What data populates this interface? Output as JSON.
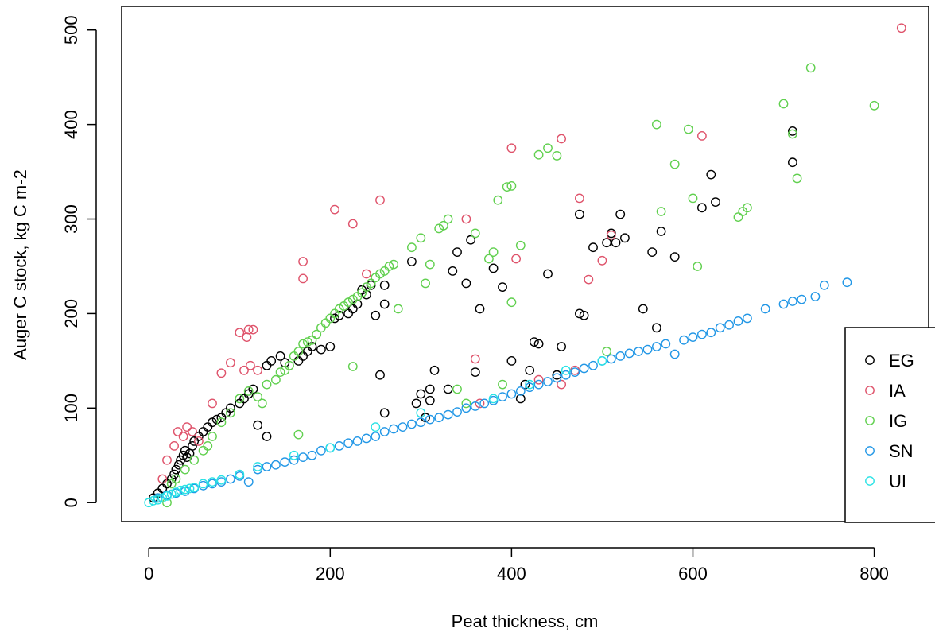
{
  "chart_data": {
    "type": "scatter",
    "title": "",
    "xlabel": "Peat thickness, cm",
    "ylabel": "Auger C stock, kg C m-2",
    "xlim": [
      -30,
      860
    ],
    "ylim": [
      -20,
      525
    ],
    "xticks": [
      0,
      200,
      400,
      600,
      800
    ],
    "yticks": [
      0,
      100,
      200,
      300,
      400,
      500
    ],
    "grid": false,
    "legend_position": "bottom-right",
    "series": [
      {
        "name": "EG",
        "color": "#000000",
        "points": [
          [
            5,
            5
          ],
          [
            10,
            10
          ],
          [
            15,
            15
          ],
          [
            20,
            20
          ],
          [
            25,
            25
          ],
          [
            28,
            30
          ],
          [
            30,
            35
          ],
          [
            33,
            40
          ],
          [
            35,
            45
          ],
          [
            38,
            50
          ],
          [
            40,
            55
          ],
          [
            42,
            48
          ],
          [
            45,
            52
          ],
          [
            48,
            60
          ],
          [
            50,
            65
          ],
          [
            55,
            70
          ],
          [
            60,
            75
          ],
          [
            65,
            80
          ],
          [
            70,
            85
          ],
          [
            75,
            88
          ],
          [
            80,
            90
          ],
          [
            85,
            95
          ],
          [
            90,
            100
          ],
          [
            100,
            105
          ],
          [
            105,
            110
          ],
          [
            110,
            115
          ],
          [
            115,
            120
          ],
          [
            120,
            82
          ],
          [
            130,
            70
          ],
          [
            130,
            145
          ],
          [
            135,
            150
          ],
          [
            145,
            155
          ],
          [
            150,
            148
          ],
          [
            165,
            150
          ],
          [
            170,
            155
          ],
          [
            175,
            160
          ],
          [
            180,
            165
          ],
          [
            190,
            162
          ],
          [
            200,
            165
          ],
          [
            205,
            195
          ],
          [
            210,
            198
          ],
          [
            220,
            200
          ],
          [
            225,
            205
          ],
          [
            230,
            210
          ],
          [
            235,
            225
          ],
          [
            240,
            220
          ],
          [
            245,
            230
          ],
          [
            250,
            198
          ],
          [
            255,
            135
          ],
          [
            260,
            95
          ],
          [
            260,
            230
          ],
          [
            260,
            210
          ],
          [
            290,
            255
          ],
          [
            295,
            105
          ],
          [
            300,
            115
          ],
          [
            305,
            90
          ],
          [
            310,
            120
          ],
          [
            310,
            108
          ],
          [
            315,
            140
          ],
          [
            330,
            120
          ],
          [
            335,
            245
          ],
          [
            340,
            265
          ],
          [
            350,
            232
          ],
          [
            355,
            278
          ],
          [
            360,
            138
          ],
          [
            365,
            205
          ],
          [
            380,
            248
          ],
          [
            390,
            228
          ],
          [
            400,
            150
          ],
          [
            410,
            110
          ],
          [
            415,
            125
          ],
          [
            420,
            140
          ],
          [
            425,
            170
          ],
          [
            430,
            168
          ],
          [
            440,
            242
          ],
          [
            450,
            135
          ],
          [
            455,
            165
          ],
          [
            475,
            200
          ],
          [
            480,
            198
          ],
          [
            475,
            305
          ],
          [
            490,
            270
          ],
          [
            505,
            275
          ],
          [
            510,
            285
          ],
          [
            515,
            275
          ],
          [
            520,
            305
          ],
          [
            525,
            280
          ],
          [
            545,
            205
          ],
          [
            555,
            265
          ],
          [
            560,
            185
          ],
          [
            565,
            287
          ],
          [
            580,
            260
          ],
          [
            610,
            312
          ],
          [
            620,
            347
          ],
          [
            625,
            318
          ],
          [
            710,
            393
          ],
          [
            710,
            360
          ]
        ]
      },
      {
        "name": "IA",
        "color": "#DF536B",
        "points": [
          [
            15,
            25
          ],
          [
            20,
            45
          ],
          [
            28,
            60
          ],
          [
            32,
            75
          ],
          [
            38,
            70
          ],
          [
            42,
            80
          ],
          [
            48,
            75
          ],
          [
            55,
            65
          ],
          [
            70,
            105
          ],
          [
            80,
            137
          ],
          [
            90,
            148
          ],
          [
            100,
            180
          ],
          [
            105,
            140
          ],
          [
            108,
            175
          ],
          [
            110,
            183
          ],
          [
            112,
            145
          ],
          [
            115,
            183
          ],
          [
            120,
            140
          ],
          [
            170,
            255
          ],
          [
            170,
            237
          ],
          [
            205,
            310
          ],
          [
            225,
            295
          ],
          [
            240,
            242
          ],
          [
            255,
            320
          ],
          [
            350,
            300
          ],
          [
            360,
            152
          ],
          [
            365,
            105
          ],
          [
            400,
            375
          ],
          [
            405,
            258
          ],
          [
            430,
            130
          ],
          [
            455,
            385
          ],
          [
            455,
            125
          ],
          [
            470,
            140
          ],
          [
            475,
            322
          ],
          [
            485,
            236
          ],
          [
            500,
            256
          ],
          [
            510,
            283
          ],
          [
            610,
            388
          ],
          [
            830,
            502
          ]
        ]
      },
      {
        "name": "IG",
        "color": "#61D04F",
        "points": [
          [
            10,
            5
          ],
          [
            20,
            0
          ],
          [
            25,
            20
          ],
          [
            30,
            25
          ],
          [
            40,
            35
          ],
          [
            50,
            45
          ],
          [
            60,
            55
          ],
          [
            65,
            60
          ],
          [
            70,
            70
          ],
          [
            80,
            85
          ],
          [
            90,
            95
          ],
          [
            100,
            110
          ],
          [
            110,
            118
          ],
          [
            120,
            112
          ],
          [
            125,
            105
          ],
          [
            130,
            125
          ],
          [
            140,
            130
          ],
          [
            145,
            138
          ],
          [
            150,
            140
          ],
          [
            155,
            145
          ],
          [
            160,
            155
          ],
          [
            165,
            160
          ],
          [
            165,
            72
          ],
          [
            170,
            168
          ],
          [
            175,
            170
          ],
          [
            180,
            172
          ],
          [
            185,
            178
          ],
          [
            190,
            185
          ],
          [
            195,
            190
          ],
          [
            200,
            195
          ],
          [
            205,
            200
          ],
          [
            210,
            205
          ],
          [
            215,
            208
          ],
          [
            220,
            212
          ],
          [
            225,
            215
          ],
          [
            230,
            218
          ],
          [
            235,
            222
          ],
          [
            240,
            228
          ],
          [
            245,
            232
          ],
          [
            250,
            238
          ],
          [
            255,
            242
          ],
          [
            260,
            245
          ],
          [
            265,
            250
          ],
          [
            270,
            252
          ],
          [
            225,
            144
          ],
          [
            275,
            205
          ],
          [
            290,
            270
          ],
          [
            300,
            280
          ],
          [
            305,
            232
          ],
          [
            310,
            252
          ],
          [
            320,
            290
          ],
          [
            325,
            293
          ],
          [
            330,
            300
          ],
          [
            340,
            120
          ],
          [
            350,
            105
          ],
          [
            360,
            285
          ],
          [
            375,
            258
          ],
          [
            380,
            265
          ],
          [
            385,
            320
          ],
          [
            390,
            125
          ],
          [
            395,
            334
          ],
          [
            400,
            335
          ],
          [
            400,
            212
          ],
          [
            410,
            272
          ],
          [
            430,
            368
          ],
          [
            440,
            375
          ],
          [
            450,
            367
          ],
          [
            505,
            160
          ],
          [
            560,
            400
          ],
          [
            565,
            308
          ],
          [
            580,
            358
          ],
          [
            595,
            395
          ],
          [
            600,
            322
          ],
          [
            605,
            250
          ],
          [
            650,
            302
          ],
          [
            655,
            308
          ],
          [
            660,
            312
          ],
          [
            700,
            422
          ],
          [
            710,
            390
          ],
          [
            715,
            343
          ],
          [
            730,
            460
          ],
          [
            800,
            420
          ]
        ]
      },
      {
        "name": "SN",
        "color": "#2297E6",
        "points": [
          [
            10,
            5
          ],
          [
            20,
            8
          ],
          [
            30,
            10
          ],
          [
            40,
            12
          ],
          [
            50,
            15
          ],
          [
            60,
            18
          ],
          [
            70,
            20
          ],
          [
            80,
            22
          ],
          [
            90,
            25
          ],
          [
            100,
            28
          ],
          [
            110,
            22
          ],
          [
            120,
            35
          ],
          [
            130,
            38
          ],
          [
            140,
            40
          ],
          [
            150,
            43
          ],
          [
            160,
            45
          ],
          [
            170,
            48
          ],
          [
            180,
            50
          ],
          [
            190,
            55
          ],
          [
            200,
            58
          ],
          [
            210,
            60
          ],
          [
            220,
            63
          ],
          [
            230,
            65
          ],
          [
            240,
            68
          ],
          [
            250,
            70
          ],
          [
            260,
            75
          ],
          [
            270,
            78
          ],
          [
            280,
            80
          ],
          [
            290,
            83
          ],
          [
            300,
            85
          ],
          [
            310,
            88
          ],
          [
            320,
            90
          ],
          [
            330,
            93
          ],
          [
            340,
            96
          ],
          [
            350,
            100
          ],
          [
            360,
            102
          ],
          [
            370,
            105
          ],
          [
            380,
            108
          ],
          [
            390,
            112
          ],
          [
            400,
            115
          ],
          [
            410,
            118
          ],
          [
            420,
            122
          ],
          [
            430,
            125
          ],
          [
            440,
            128
          ],
          [
            450,
            132
          ],
          [
            460,
            135
          ],
          [
            470,
            138
          ],
          [
            480,
            142
          ],
          [
            490,
            145
          ],
          [
            500,
            150
          ],
          [
            510,
            152
          ],
          [
            520,
            155
          ],
          [
            530,
            158
          ],
          [
            540,
            160
          ],
          [
            550,
            162
          ],
          [
            560,
            165
          ],
          [
            570,
            168
          ],
          [
            580,
            157
          ],
          [
            590,
            172
          ],
          [
            600,
            175
          ],
          [
            610,
            178
          ],
          [
            620,
            180
          ],
          [
            630,
            185
          ],
          [
            640,
            188
          ],
          [
            650,
            192
          ],
          [
            660,
            195
          ],
          [
            680,
            205
          ],
          [
            700,
            210
          ],
          [
            710,
            213
          ],
          [
            720,
            215
          ],
          [
            735,
            218
          ],
          [
            745,
            230
          ],
          [
            770,
            233
          ]
        ]
      },
      {
        "name": "UI",
        "color": "#28E2E5",
        "points": [
          [
            0,
            0
          ],
          [
            5,
            2
          ],
          [
            10,
            3
          ],
          [
            15,
            5
          ],
          [
            20,
            7
          ],
          [
            25,
            9
          ],
          [
            30,
            11
          ],
          [
            35,
            13
          ],
          [
            40,
            14
          ],
          [
            45,
            15
          ],
          [
            50,
            16
          ],
          [
            60,
            20
          ],
          [
            70,
            22
          ],
          [
            80,
            24
          ],
          [
            100,
            30
          ],
          [
            120,
            38
          ],
          [
            160,
            50
          ],
          [
            200,
            58
          ],
          [
            250,
            80
          ],
          [
            300,
            95
          ],
          [
            380,
            110
          ],
          [
            420,
            125
          ],
          [
            460,
            140
          ],
          [
            500,
            150
          ]
        ]
      }
    ]
  }
}
